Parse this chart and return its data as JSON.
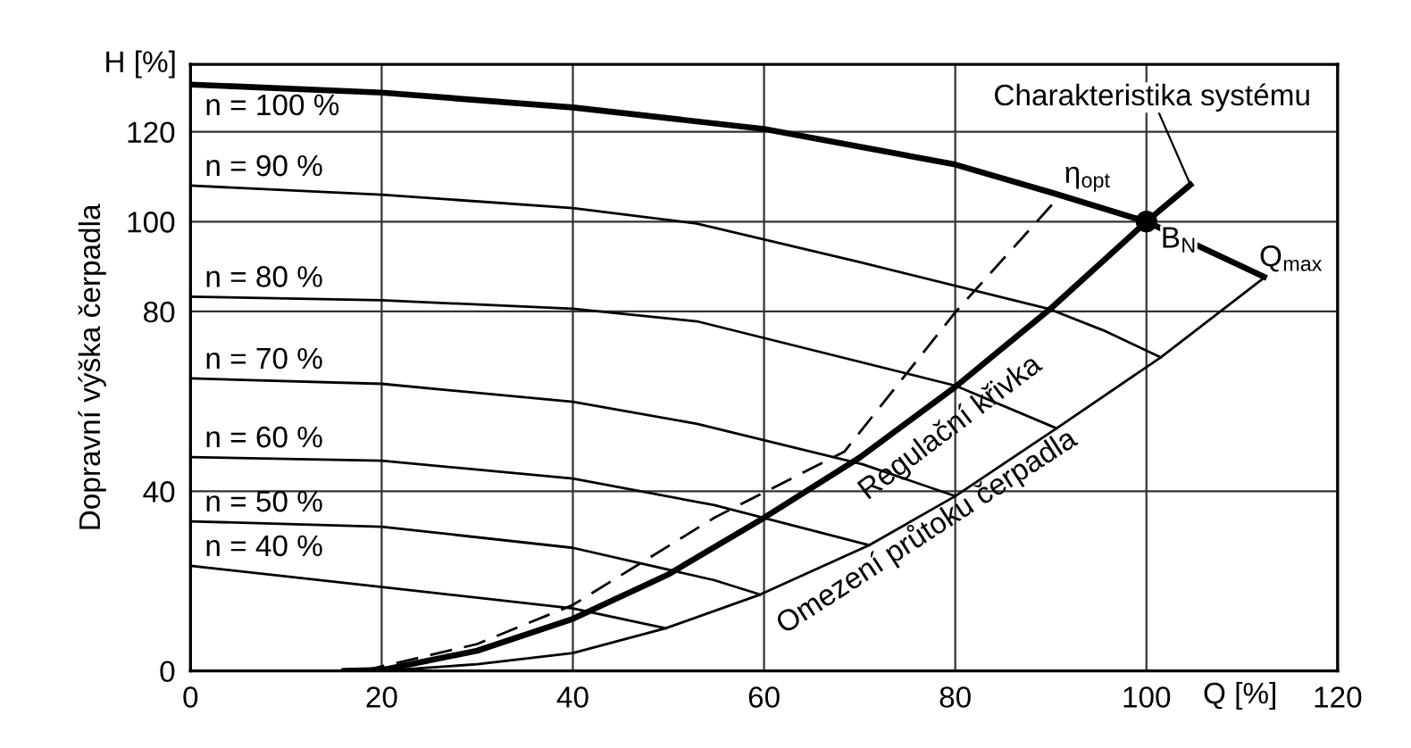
{
  "chart_data": {
    "type": "line",
    "xlabel": "Q [%]",
    "ylabel": "Dopravní výška čerpadla",
    "xlim": [
      0,
      120
    ],
    "ylim": [
      0,
      135
    ],
    "xticks": [
      0,
      20,
      40,
      60,
      80,
      100,
      120
    ],
    "yticks": [
      0,
      40,
      80,
      100,
      120
    ],
    "grid": true,
    "marker": "none",
    "line_style": "solid",
    "series": [
      {
        "name": "n = 100 %",
        "color": "#000000",
        "x": [
          0,
          20,
          40,
          60,
          80,
          90.3,
          100,
          112.3
        ],
        "values": [
          130.5,
          128.7,
          125.4,
          120.6,
          112.7,
          106.3,
          100,
          87.7
        ]
      },
      {
        "name": "n = 90 %",
        "color": "#000000",
        "x": [
          0,
          20,
          40,
          52.9,
          70,
          89.9,
          95.5,
          101.5
        ],
        "values": [
          108,
          106,
          103,
          99.6,
          91,
          80.5,
          75.8,
          69.8
        ]
      },
      {
        "name": "n = 80 %",
        "color": "#000000",
        "x": [
          0,
          20,
          40,
          53,
          80,
          90.6
        ],
        "values": [
          83.3,
          82.5,
          80.6,
          77.8,
          63.5,
          54
        ]
      },
      {
        "name": "n = 70 %",
        "color": "#000000",
        "x": [
          0,
          20,
          40,
          53,
          70.3,
          80
        ],
        "values": [
          65.1,
          63.9,
          59.9,
          55,
          46,
          38.9
        ]
      },
      {
        "name": "n = 60 %",
        "color": "#000000",
        "x": [
          0,
          20,
          40,
          54.8,
          71
        ],
        "values": [
          47.6,
          46.8,
          42.8,
          36.9,
          28
        ]
      },
      {
        "name": "n = 50 %",
        "color": "#000000",
        "x": [
          0,
          20,
          40,
          54.8,
          59.6
        ],
        "values": [
          33.3,
          32.1,
          27.4,
          20.2,
          17
        ]
      },
      {
        "name": "n = 40 %",
        "color": "#000000",
        "x": [
          0,
          20,
          40,
          49.7
        ],
        "values": [
          23.4,
          18.7,
          13.9,
          9.5
        ]
      },
      {
        "name": "η$_{opt}$",
        "color": "#000000",
        "line_style": "dashed",
        "x": [
          18,
          30,
          40,
          54.8,
          68.4,
          80,
          90.9
        ],
        "values": [
          0,
          6,
          14.7,
          34.1,
          48.8,
          79.8,
          105.6
        ]
      },
      {
        "name": "Charakteristika systému",
        "color": "#000000",
        "x": [
          16.1,
          20,
          30,
          40,
          50,
          60,
          70,
          80,
          89.9,
          100,
          104.6
        ],
        "values": [
          0,
          0.2,
          4.5,
          11.6,
          21.5,
          34.1,
          47.5,
          63.2,
          80.5,
          100,
          108.2
        ]
      },
      {
        "name": "Omezení průtoku čerpadla",
        "color": "#000000",
        "x": [
          20,
          30,
          40,
          49.7,
          59.6,
          71,
          80,
          90.6,
          101.5,
          112.3
        ],
        "values": [
          0,
          1.5,
          4,
          9.5,
          17,
          28,
          38.9,
          54,
          69.8,
          87.5
        ]
      },
      {
        "type": "scatter",
        "color": "#000000",
        "marker": "circle",
        "x": [
          100
        ],
        "values": [
          100
        ]
      }
    ],
    "annotations": [
      "H [%]",
      "Regulační křivka",
      {
        "text": "B$_{N}$",
        "x": 100,
        "y": 100
      },
      {
        "text": "Q$_{max}$",
        "x": 112.3,
        "y": 87.7
      }
    ]
  }
}
